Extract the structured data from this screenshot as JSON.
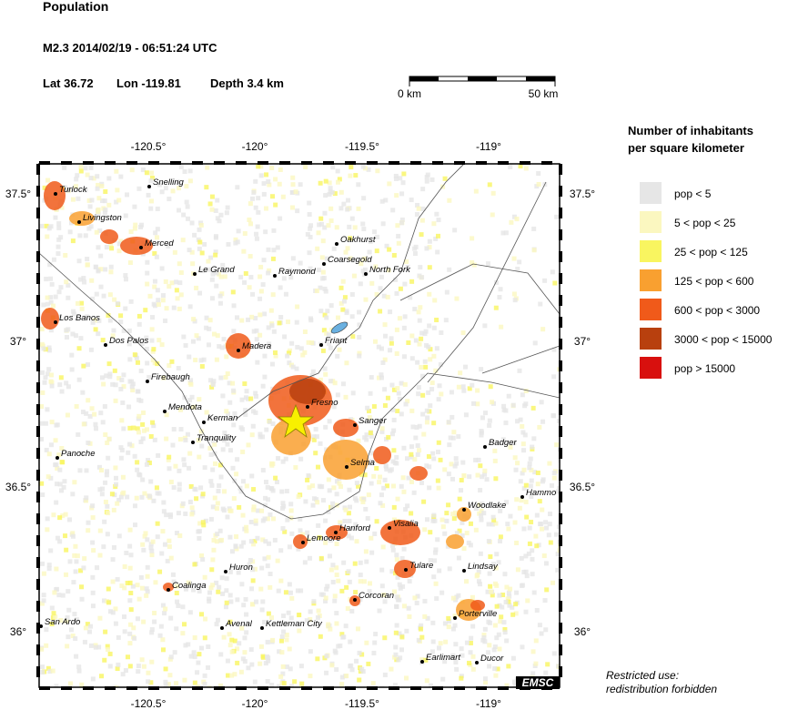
{
  "header": {
    "title": "Population",
    "event": "M2.3  2014/02/19 - 06:51:24 UTC",
    "lat": "Lat 36.72",
    "lon": "Lon -119.81",
    "depth": "Depth  3.4 km"
  },
  "scale_bar": {
    "start": "0 km",
    "end": "50 km"
  },
  "map": {
    "lon_labels": [
      "-120.5°",
      "-120°",
      "-119.5°",
      "-119°"
    ],
    "lat_labels": [
      "37.5°",
      "37°",
      "36.5°",
      "36°"
    ],
    "cities": [
      "Turlock",
      "Snelling",
      "Livingston",
      "Merced",
      "Le Grand",
      "Raymond",
      "Oakhurst",
      "Coarsegold",
      "North Fork",
      "Los Banos",
      "Dos Palos",
      "Madera",
      "Friant",
      "Firebaugh",
      "Mendota",
      "Kerman",
      "Fresno",
      "Tranquility",
      "Sanger",
      "Badger",
      "Panoche",
      "Selma",
      "Hammo",
      "Woodlake",
      "Visalia",
      "Hanford",
      "Lemoore",
      "Tulare",
      "Lindsay",
      "Huron",
      "Coalinga",
      "Corcoran",
      "Porterville",
      "San Ardo",
      "Avenal",
      "Kettleman City",
      "Earlimart",
      "Ducor"
    ],
    "badge": "EMSC"
  },
  "legend": {
    "title": [
      "Number of inhabitants",
      "per square kilometer"
    ],
    "items": [
      {
        "label": "pop < 5",
        "color": "#e6e6e6"
      },
      {
        "label": "5 < pop < 25",
        "color": "#fbf7c0"
      },
      {
        "label": "25 < pop < 125",
        "color": "#f9f560"
      },
      {
        "label": "125 < pop < 600",
        "color": "#f9a030"
      },
      {
        "label": "600 < pop < 3000",
        "color": "#f05a1a"
      },
      {
        "label": "3000 < pop < 15000",
        "color": "#b8400e"
      },
      {
        "label": "pop > 15000",
        "color": "#d8100e"
      }
    ]
  },
  "notice": [
    "Restricted use:",
    "redistribution forbidden"
  ]
}
